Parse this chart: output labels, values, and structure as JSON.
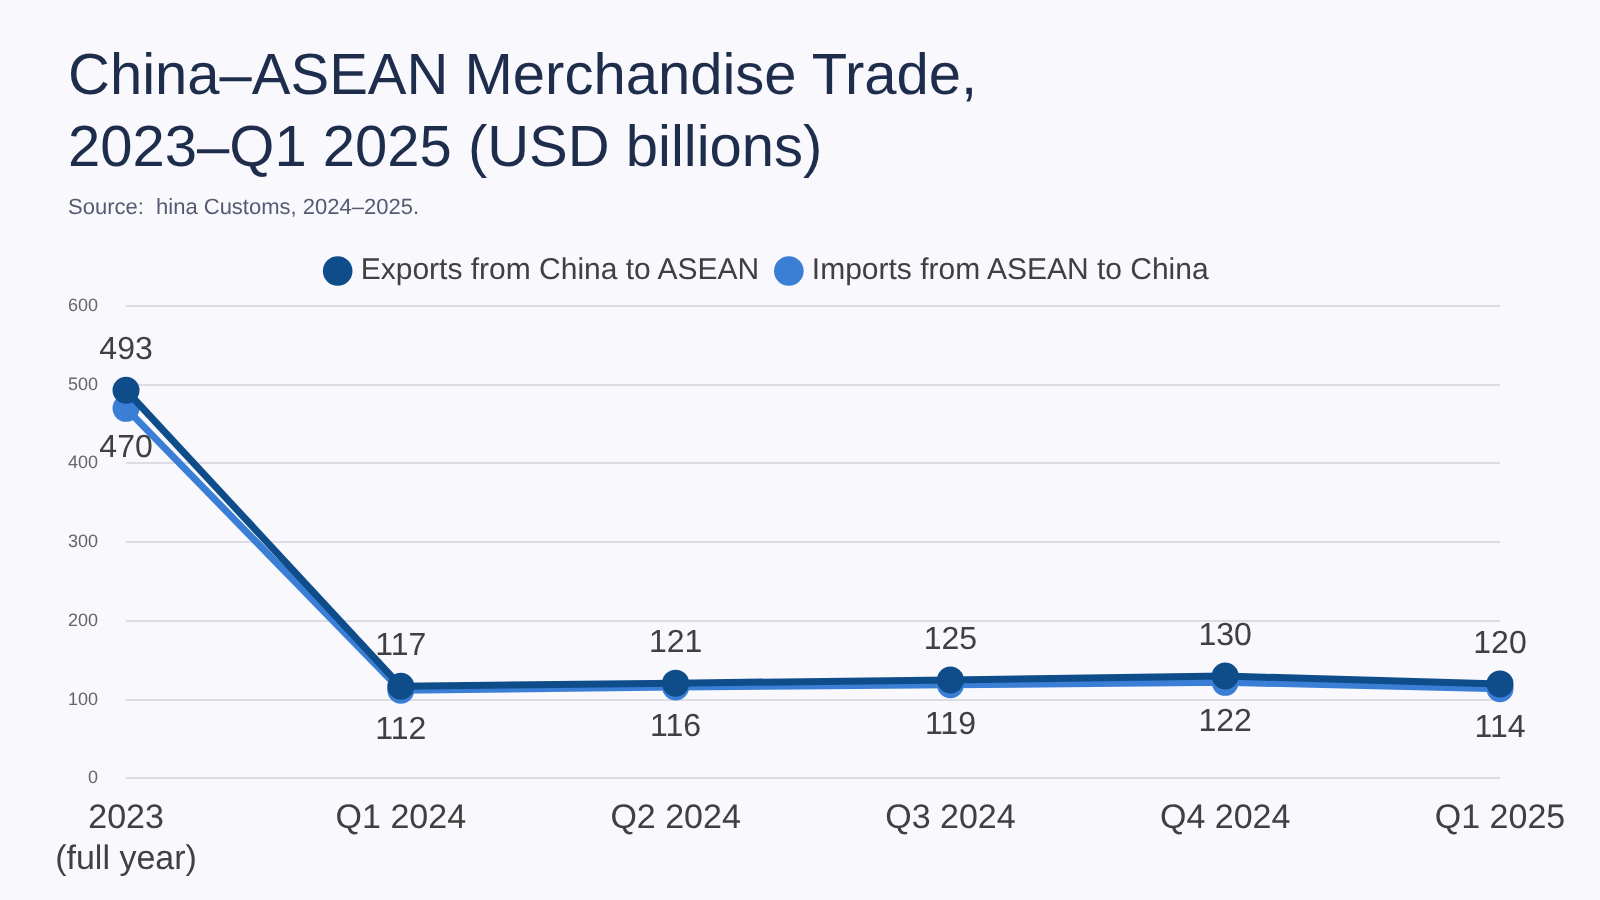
{
  "chart_data": {
    "type": "line",
    "title": "China–ASEAN Merchandise Trade, 2023–Q1 2025 (USD billions)",
    "annotations": [
      "Source:  hina Customs, 2024–2025."
    ],
    "categories": [
      "2023 (full year)",
      "Q1 2024",
      "Q2 2024",
      "Q3 2024",
      "Q4 2024",
      "Q1 2025"
    ],
    "series": [
      {
        "name": "Exports from China to ASEAN",
        "color": "#0f4c8a",
        "values": [
          493,
          117,
          121,
          125,
          130,
          120
        ]
      },
      {
        "name": "Imports from ASEAN to China",
        "color": "#3a7fd5",
        "values": [
          470,
          112,
          116,
          119,
          122,
          114
        ]
      }
    ],
    "ylim": [
      0,
      600
    ],
    "yticks": [
      0,
      100,
      200,
      300,
      400,
      500,
      600
    ],
    "grid": "y",
    "legend": "top",
    "marker": "circle",
    "line_style": "solid",
    "data_labels": true
  }
}
